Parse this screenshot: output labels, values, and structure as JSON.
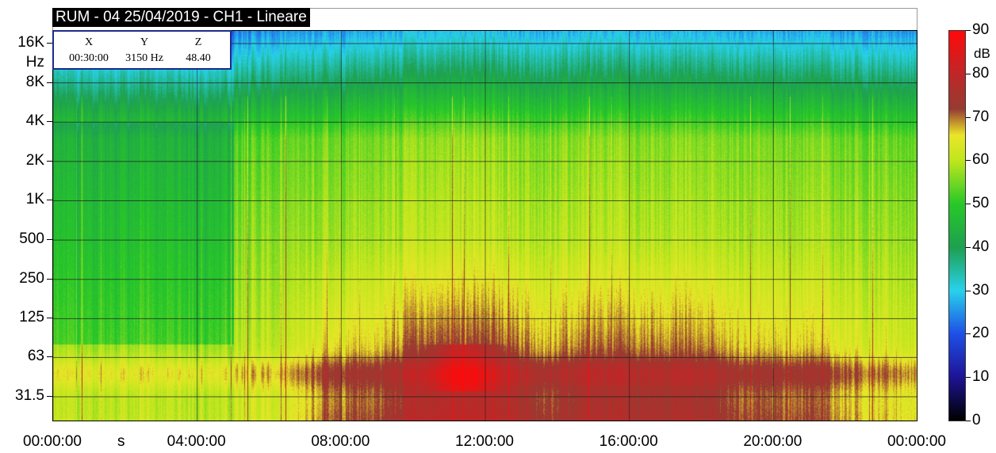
{
  "title": "RUM - 04  25/04/2019 - CH1 - Lineare",
  "readout": {
    "x_label": "X",
    "x_value": "00:30:00",
    "y_label": "Y",
    "y_value": "3150 Hz",
    "z_label": "Z",
    "z_value": "48.40"
  },
  "y_unit": "Hz",
  "x_unit": "s",
  "colorbar_unit": "dB",
  "colors": {
    "colormap": [
      "#000000",
      "#1a1aa0",
      "#1f4de0",
      "#22c7e8",
      "#27d6c0",
      "#1e9c3a",
      "#33d11c",
      "#e8e81e",
      "#a83a2a",
      "#ff1010"
    ]
  },
  "chart_data": {
    "type": "heatmap",
    "title": "RUM - 04  25/04/2019 - CH1 - Lineare",
    "xlabel": "s",
    "ylabel": "Hz",
    "zlabel": "dB",
    "y_scale": "log",
    "grid": true,
    "y_ticks": [
      {
        "label": "31.5",
        "value": 31.5
      },
      {
        "label": "63",
        "value": 63
      },
      {
        "label": "125",
        "value": 125
      },
      {
        "label": "250",
        "value": 250
      },
      {
        "label": "500",
        "value": 500
      },
      {
        "label": "1K",
        "value": 1000
      },
      {
        "label": "2K",
        "value": 2000
      },
      {
        "label": "4K",
        "value": 4000
      },
      {
        "label": "8K",
        "value": 8000
      },
      {
        "label": "16K",
        "value": 16000
      }
    ],
    "x_ticks": [
      {
        "label": "00:00:00",
        "value": 0
      },
      {
        "label": "04:00:00",
        "value": 4
      },
      {
        "label": "08:00:00",
        "value": 8
      },
      {
        "label": "12:00:00",
        "value": 12
      },
      {
        "label": "16:00:00",
        "value": 16
      },
      {
        "label": "20:00:00",
        "value": 20
      },
      {
        "label": "00:00:00",
        "value": 24
      }
    ],
    "xlim_hours": [
      0,
      24
    ],
    "zlim": [
      0,
      90
    ],
    "z_ticks": [
      0,
      10,
      20,
      30,
      40,
      50,
      60,
      70,
      80,
      90
    ]
  }
}
